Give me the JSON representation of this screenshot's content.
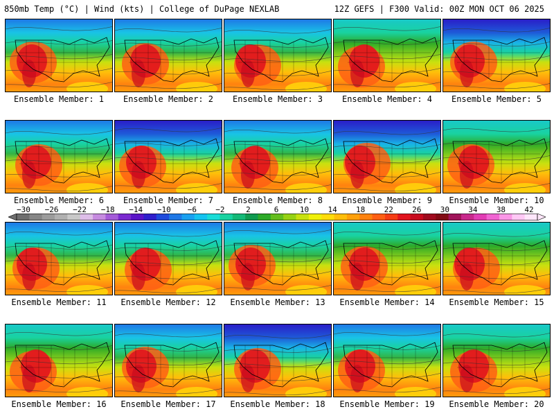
{
  "header": {
    "left": "850mb Temp (°C) | Wind (kts) | College of DuPage NEXLAB",
    "right": "12Z GEFS | F300 Valid: 00Z MON OCT 06 2025"
  },
  "members": [
    {
      "label": "Ensemble Member: 1",
      "north": "cool"
    },
    {
      "label": "Ensemble Member: 2",
      "north": "cool"
    },
    {
      "label": "Ensemble Member: 3",
      "north": "cool"
    },
    {
      "label": "Ensemble Member: 4",
      "north": "mild"
    },
    {
      "label": "Ensemble Member: 5",
      "north": "cold"
    },
    {
      "label": "Ensemble Member: 6",
      "north": "cool"
    },
    {
      "label": "Ensemble Member: 7",
      "north": "cold"
    },
    {
      "label": "Ensemble Member: 8",
      "north": "cool"
    },
    {
      "label": "Ensemble Member: 9",
      "north": "cold"
    },
    {
      "label": "Ensemble Member: 10",
      "north": "mild"
    },
    {
      "label": "Ensemble Member: 11",
      "north": "cool"
    },
    {
      "label": "Ensemble Member: 12",
      "north": "cool"
    },
    {
      "label": "Ensemble Member: 13",
      "north": "cool"
    },
    {
      "label": "Ensemble Member: 14",
      "north": "mild"
    },
    {
      "label": "Ensemble Member: 15",
      "north": "mild"
    },
    {
      "label": "Ensemble Member: 16",
      "north": "mild"
    },
    {
      "label": "Ensemble Member: 17",
      "north": "cool"
    },
    {
      "label": "Ensemble Member: 18",
      "north": "cold"
    },
    {
      "label": "Ensemble Member: 19",
      "north": "cool"
    },
    {
      "label": "Ensemble Member: 20",
      "north": "mild"
    }
  ],
  "colorbar": {
    "labels": [
      "−30",
      "−26",
      "−22",
      "−18",
      "−14",
      "−10",
      "−6",
      "−2",
      "2",
      "6",
      "10",
      "14",
      "18",
      "22",
      "26",
      "30",
      "34",
      "38",
      "42"
    ],
    "colors": [
      "#6e6e6e",
      "#868686",
      "#9c9c9c",
      "#b0b0b0",
      "#c8c8c8",
      "#ddbde8",
      "#c68be0",
      "#a45ad8",
      "#7b2ad0",
      "#5a14c8",
      "#2f1ecc",
      "#1e4bdc",
      "#1e78e6",
      "#19a0f0",
      "#14c3f0",
      "#19dcd7",
      "#19d2a0",
      "#14b978",
      "#0f9b50",
      "#2daa28",
      "#64be1e",
      "#96d214",
      "#c8e10f",
      "#f0f00a",
      "#ffdc0a",
      "#ffbe0a",
      "#ffa00a",
      "#ff820f",
      "#ff5f14",
      "#f53c14",
      "#e1141e",
      "#c80a1e",
      "#a00a1e",
      "#820a14",
      "#a0145a",
      "#c8288c",
      "#e13cb4",
      "#f064d2",
      "#fa96e6",
      "#ffc8f5",
      "#ffe6fa"
    ]
  }
}
